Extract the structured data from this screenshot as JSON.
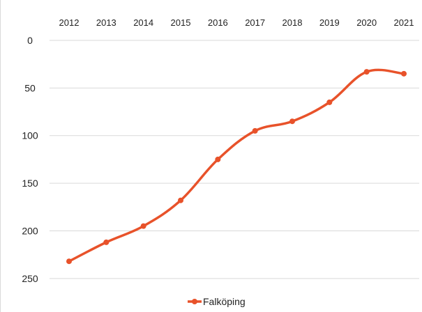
{
  "chart_data": {
    "type": "line",
    "title": "",
    "xlabel": "",
    "ylabel": "",
    "x_axis_position": "top",
    "y_axis_reversed": true,
    "ylim": [
      0,
      275
    ],
    "y_ticks": [
      0,
      50,
      100,
      150,
      200,
      250
    ],
    "grid": {
      "horizontal": true,
      "vertical": false
    },
    "legend": {
      "placement": "bottom-center"
    },
    "categories": [
      "2012",
      "2013",
      "2014",
      "2015",
      "2016",
      "2017",
      "2018",
      "2019",
      "2020",
      "2021"
    ],
    "series": [
      {
        "name": "Falköping",
        "color": "#e8522a",
        "values": [
          232,
          212,
          195,
          168,
          125,
          95,
          85,
          65,
          33,
          35
        ]
      }
    ]
  }
}
